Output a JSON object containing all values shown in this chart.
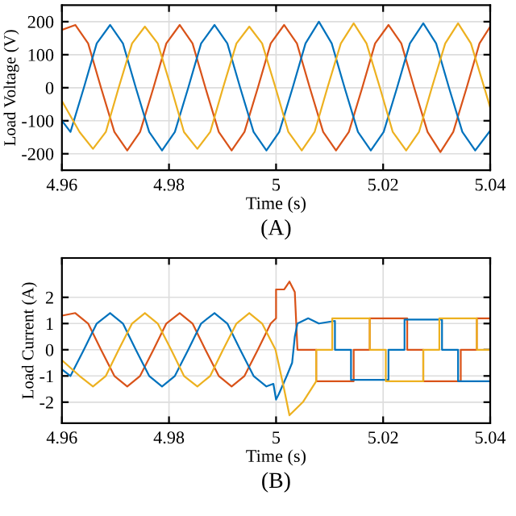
{
  "chart_data": [
    {
      "type": "line",
      "xlabel": "Time (s)",
      "ylabel": "Load Voltage (V)",
      "annotations": [
        "(A)"
      ],
      "xlim": [
        4.96,
        5.04
      ],
      "xticks": [
        4.96,
        4.98,
        5,
        5.02,
        5.04
      ],
      "ylim": [
        -250,
        250
      ],
      "yticks": [
        -200,
        -100,
        0,
        100,
        200
      ],
      "grid": true,
      "line_style": "solid",
      "marker": "none",
      "series": [
        {
          "color": "#d95319",
          "x": [
            4.96,
            4.9625,
            4.9649,
            4.9673,
            4.9698,
            4.9722,
            4.9746,
            4.9771,
            4.9795,
            4.982,
            4.9844,
            4.9868,
            4.9893,
            4.9917,
            4.9941,
            4.9966,
            4.999,
            5.0015,
            5.0039,
            5.0063,
            5.0088,
            5.0112,
            5.0136,
            5.0161,
            5.0185,
            5.021,
            5.0234,
            5.0258,
            5.0283,
            5.0307,
            5.0331,
            5.0356,
            5.038,
            5.04
          ],
          "values": [
            175,
            190,
            134,
            0,
            -134,
            -190,
            -134,
            0,
            134,
            190,
            134,
            0,
            -134,
            -190,
            -134,
            0,
            134,
            190,
            134,
            0,
            -134,
            -190,
            -134,
            0,
            134,
            190,
            134,
            0,
            -134,
            -195,
            -134,
            0,
            134,
            185
          ]
        },
        {
          "color": "#0072bd",
          "x": [
            4.96,
            4.9616,
            4.9641,
            4.9665,
            4.969,
            4.9714,
            4.9738,
            4.9763,
            4.9787,
            4.9811,
            4.9836,
            4.986,
            4.9885,
            4.9909,
            4.9933,
            4.9958,
            4.9982,
            5.0006,
            5.0031,
            5.0055,
            5.008,
            5.0104,
            5.0128,
            5.0153,
            5.0177,
            5.0201,
            5.0226,
            5.025,
            5.0275,
            5.0299,
            5.0323,
            5.0348,
            5.0372,
            5.04
          ],
          "values": [
            -100,
            -134,
            0,
            134,
            190,
            134,
            0,
            -134,
            -190,
            -134,
            0,
            134,
            190,
            134,
            0,
            -134,
            -190,
            -134,
            0,
            134,
            200,
            134,
            0,
            -134,
            -190,
            -134,
            0,
            134,
            195,
            134,
            0,
            -134,
            -190,
            -130
          ]
        },
        {
          "color": "#edb120",
          "x": [
            4.96,
            4.9633,
            4.9658,
            4.9682,
            4.9706,
            4.9731,
            4.9755,
            4.9779,
            4.9804,
            4.9828,
            4.9853,
            4.9877,
            4.9901,
            4.9926,
            4.995,
            4.9974,
            4.9999,
            5.0023,
            5.0048,
            5.0072,
            5.0096,
            5.0121,
            5.0145,
            5.0169,
            5.0194,
            5.0218,
            5.0243,
            5.0267,
            5.0291,
            5.0316,
            5.034,
            5.0364,
            5.0389,
            5.04
          ],
          "values": [
            -40,
            -134,
            -185,
            -134,
            0,
            134,
            185,
            134,
            0,
            -134,
            -185,
            -134,
            0,
            134,
            185,
            134,
            0,
            -134,
            -190,
            -134,
            0,
            134,
            195,
            134,
            0,
            -134,
            -190,
            -134,
            0,
            134,
            195,
            134,
            0,
            -60
          ]
        }
      ]
    },
    {
      "type": "line",
      "xlabel": "Time (s)",
      "ylabel": "Load Current (A)",
      "annotations": [
        "(B)"
      ],
      "xlim": [
        4.96,
        5.04
      ],
      "xticks": [
        4.96,
        4.98,
        5,
        5.02,
        5.04
      ],
      "ylim": [
        -2.8,
        3.5
      ],
      "yticks": [
        -2,
        -1,
        0,
        1,
        2
      ],
      "grid": true,
      "line_style": "solid",
      "marker": "none",
      "series": [
        {
          "color": "#d95319",
          "x": [
            4.96,
            4.9625,
            4.9649,
            4.9673,
            4.9698,
            4.9722,
            4.9746,
            4.9771,
            4.9795,
            4.982,
            4.9844,
            4.9868,
            4.9893,
            4.9917,
            4.9941,
            4.9966,
            4.999,
            5.0,
            5.0,
            5.0015,
            5.0025,
            5.0035,
            5.004,
            5.0075,
            5.0075,
            5.0145,
            5.0145,
            5.0175,
            5.0175,
            5.0245,
            5.0245,
            5.0275,
            5.0275,
            5.0345,
            5.0345,
            5.0375,
            5.0375,
            5.04
          ],
          "values": [
            1.3,
            1.4,
            1.0,
            0,
            -1.0,
            -1.4,
            -1.0,
            0,
            1.0,
            1.4,
            1.0,
            0,
            -1.0,
            -1.4,
            -1.0,
            0,
            1.0,
            1.2,
            2.3,
            2.3,
            2.6,
            2.2,
            0,
            0,
            -1.2,
            -1.2,
            0,
            0,
            1.2,
            1.2,
            0,
            0,
            -1.2,
            -1.2,
            0,
            0,
            1.2,
            1.2
          ]
        },
        {
          "color": "#0072bd",
          "x": [
            4.96,
            4.9616,
            4.9641,
            4.9665,
            4.969,
            4.9714,
            4.9738,
            4.9763,
            4.9787,
            4.9811,
            4.9836,
            4.986,
            4.9885,
            4.9909,
            4.9933,
            4.9958,
            4.9982,
            4.9995,
            5.0,
            5.0005,
            5.002,
            5.003,
            5.0035,
            5.004,
            5.006,
            5.008,
            5.011,
            5.011,
            5.014,
            5.014,
            5.021,
            5.021,
            5.024,
            5.024,
            5.031,
            5.031,
            5.034,
            5.034,
            5.04
          ],
          "values": [
            -0.75,
            -1.0,
            0,
            1.0,
            1.4,
            1.0,
            0,
            -1.0,
            -1.4,
            -1.0,
            0,
            1.0,
            1.4,
            1.0,
            0,
            -1.0,
            -1.4,
            -1.3,
            -1.9,
            -1.7,
            -1.0,
            -0.5,
            0.5,
            1.0,
            1.2,
            1.0,
            1.1,
            0,
            0,
            -1.15,
            -1.15,
            0,
            0,
            1.15,
            1.15,
            0,
            0,
            -1.2,
            -1.2
          ]
        },
        {
          "color": "#edb120",
          "x": [
            4.96,
            4.9633,
            4.9658,
            4.9682,
            4.9706,
            4.9731,
            4.9755,
            4.9779,
            4.9804,
            4.9828,
            4.9853,
            4.9877,
            4.9901,
            4.9926,
            4.995,
            4.9974,
            4.9999,
            5.0015,
            5.0025,
            5.005,
            5.0075,
            5.0075,
            5.0105,
            5.0105,
            5.0175,
            5.0175,
            5.0205,
            5.0205,
            5.0275,
            5.0275,
            5.0305,
            5.0305,
            5.0375,
            5.0375,
            5.04
          ],
          "values": [
            -0.4,
            -1.0,
            -1.4,
            -1.0,
            0,
            1.0,
            1.4,
            1.0,
            0,
            -1.0,
            -1.4,
            -1.0,
            0,
            1.0,
            1.4,
            1.0,
            0,
            -1.5,
            -2.5,
            -2.0,
            -1.2,
            0,
            0,
            1.2,
            1.2,
            0,
            0,
            -1.2,
            -1.2,
            0,
            0,
            1.2,
            1.2,
            0,
            0
          ]
        }
      ]
    }
  ]
}
